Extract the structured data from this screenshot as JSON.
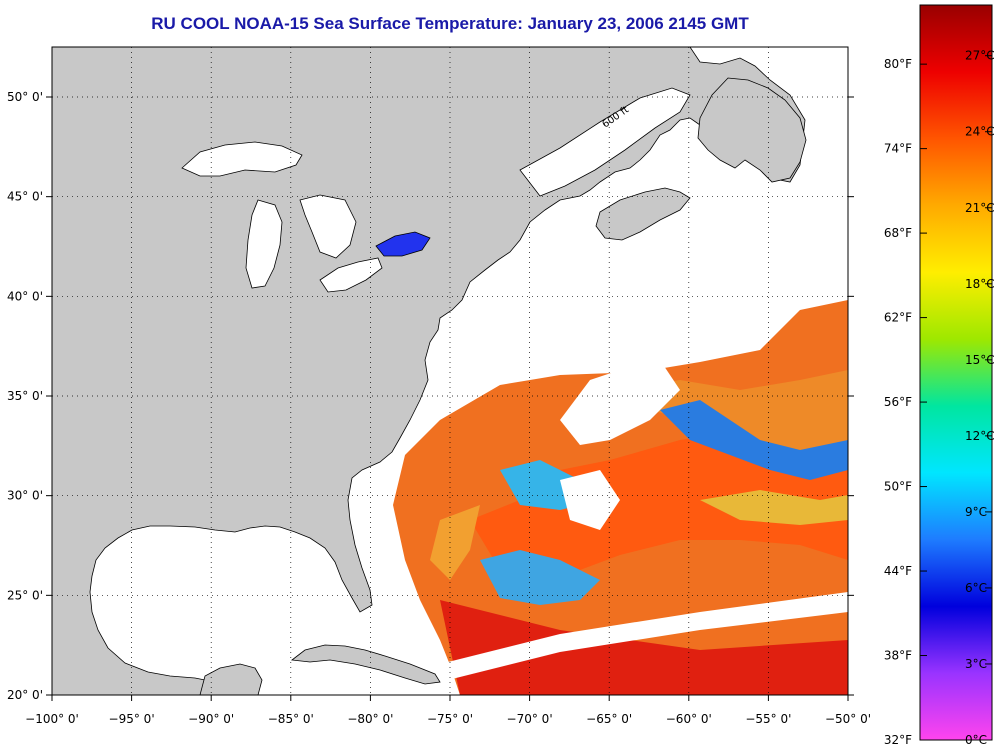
{
  "title": "RU COOL  NOAA-15  Sea Surface Temperature:  January 23, 2006 2145 GMT",
  "map": {
    "lon_ticks": [
      -100,
      -95,
      -90,
      -85,
      -80,
      -75,
      -70,
      -65,
      -60,
      -55,
      -50
    ],
    "lon_labels": [
      "−100° 0'",
      "−95° 0'",
      "−90° 0'",
      "−85° 0'",
      "−80° 0'",
      "−75° 0'",
      "−70° 0'",
      "−65° 0'",
      "−60° 0'",
      "−55° 0'",
      "−50° 0'"
    ],
    "lat_ticks": [
      20,
      25,
      30,
      35,
      40,
      45,
      50
    ],
    "lat_labels": [
      "20° 0'",
      "25° 0'",
      "30° 0'",
      "35° 0'",
      "40° 0'",
      "45° 0'",
      "50° 0'"
    ],
    "contour_label": "600 ft",
    "land_color": "#c8c8c8",
    "grid": "dotted"
  },
  "colorbar": {
    "celsius_labels": [
      "27°C",
      "24°C",
      "21°C",
      "18°C",
      "15°C",
      "12°C",
      "9°C",
      "6°C",
      "3°C",
      "0°C"
    ],
    "celsius_values": [
      27,
      24,
      21,
      18,
      15,
      12,
      9,
      6,
      3,
      0
    ],
    "fahrenheit_labels": [
      "80°F",
      "74°F",
      "68°F",
      "62°F",
      "56°F",
      "50°F",
      "44°F",
      "38°F",
      "32°F"
    ],
    "fahrenheit_values": [
      80,
      74,
      68,
      62,
      56,
      50,
      44,
      38,
      32
    ],
    "range_c": [
      0,
      29
    ],
    "colors": [
      "#ff44ee",
      "#9933ff",
      "#0000dd",
      "#1e7cff",
      "#00e6ff",
      "#00e6a0",
      "#9ee800",
      "#ffee00",
      "#ffaa00",
      "#ff5500",
      "#ee0000",
      "#990000"
    ]
  }
}
